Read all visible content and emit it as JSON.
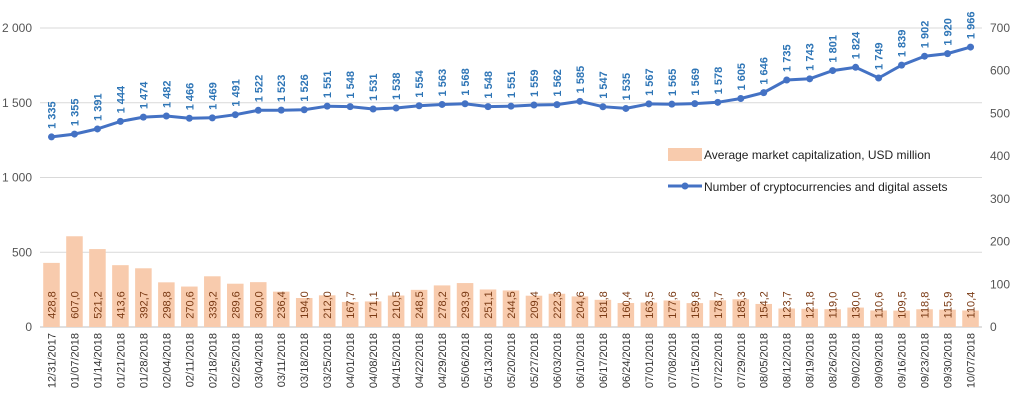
{
  "chart_data": {
    "type": "bar",
    "categories": [
      "12/31/2017",
      "01/07/2018",
      "01/14/2018",
      "01/21/2018",
      "01/28/2018",
      "02/04/2018",
      "02/11/2018",
      "02/18/2018",
      "02/25/2018",
      "03/04/2018",
      "03/11/2018",
      "03/18/2018",
      "03/25/2018",
      "04/01/2018",
      "04/08/2018",
      "04/15/2018",
      "04/22/2018",
      "04/29/2018",
      "05/06/2018",
      "05/13/2018",
      "05/20/2018",
      "05/27/2018",
      "06/03/2018",
      "06/10/2018",
      "06/17/2018",
      "06/24/2018",
      "07/01/2018",
      "07/08/2018",
      "07/15/2018",
      "07/22/2018",
      "07/29/2018",
      "08/05/2018",
      "08/12/2018",
      "08/19/2018",
      "08/26/2018",
      "09/02/2018",
      "09/09/2018",
      "09/16/2018",
      "09/23/2018",
      "09/30/2018",
      "10/07/2018"
    ],
    "series": [
      {
        "name": "Average market capitalization, USD million",
        "kind": "bar",
        "axis": "left",
        "color": "#f8cbad",
        "label_color": "#7a3a14",
        "values": [
          428.8,
          607.0,
          521.2,
          413.6,
          392.7,
          298.8,
          270.6,
          339.2,
          289.6,
          300.0,
          236.4,
          194.0,
          212.0,
          167.7,
          171.1,
          210.5,
          248.5,
          278.2,
          293.9,
          251.1,
          244.5,
          209.4,
          222.3,
          204.6,
          181.8,
          160.4,
          163.5,
          177.6,
          159.8,
          178.7,
          185.3,
          154.2,
          123.7,
          121.8,
          119.0,
          130.0,
          110.6,
          109.5,
          118.8,
          115.9,
          110.4
        ],
        "labels": [
          "428,8",
          "607,0",
          "521,2",
          "413,6",
          "392,7",
          "298,8",
          "270,6",
          "339,2",
          "289,6",
          "300,0",
          "236,4",
          "194,0",
          "212,0",
          "167,7",
          "171,1",
          "210,5",
          "248,5",
          "278,2",
          "293,9",
          "251,1",
          "244,5",
          "209,4",
          "222,3",
          "204,6",
          "181,8",
          "160,4",
          "163,5",
          "177,6",
          "159,8",
          "178,7",
          "185,3",
          "154,2",
          "123,7",
          "121,8",
          "119,0",
          "130,0",
          "110,6",
          "109,5",
          "118,8",
          "115,9",
          "110,4"
        ]
      },
      {
        "name": "Number of cryptocurrencies and digital assets",
        "kind": "line",
        "axis": "right",
        "color": "#4472c4",
        "label_color": "#2e75b6",
        "values": [
          1335,
          1355,
          1391,
          1444,
          1474,
          1482,
          1466,
          1469,
          1491,
          1522,
          1523,
          1526,
          1551,
          1548,
          1531,
          1538,
          1554,
          1563,
          1568,
          1548,
          1551,
          1559,
          1562,
          1585,
          1547,
          1535,
          1567,
          1565,
          1569,
          1578,
          1605,
          1646,
          1735,
          1743,
          1801,
          1824,
          1749,
          1839,
          1902,
          1920,
          1966
        ],
        "labels": [
          "1 335",
          "1 355",
          "1 391",
          "1 444",
          "1 474",
          "1 482",
          "1 466",
          "1 469",
          "1 491",
          "1 522",
          "1 523",
          "1 526",
          "1 551",
          "1 548",
          "1 531",
          "1 538",
          "1 554",
          "1 563",
          "1 568",
          "1 548",
          "1 551",
          "1 559",
          "1 562",
          "1 585",
          "1 547",
          "1 535",
          "1 567",
          "1 565",
          "1 569",
          "1 578",
          "1 605",
          "1 646",
          "1 735",
          "1 743",
          "1 801",
          "1 824",
          "1 749",
          "1 839",
          "1 902",
          "1 920",
          "1 966"
        ]
      }
    ],
    "left_axis": {
      "ylim": [
        0,
        2000
      ],
      "ticks": [
        0,
        500,
        1000,
        1500,
        2000
      ],
      "tick_labels": [
        "0",
        "500",
        "1 000",
        "1 500",
        "2 000"
      ]
    },
    "right_axis": {
      "ylim": [
        0,
        700
      ],
      "ticks": [
        0,
        100,
        200,
        300,
        400,
        500,
        600,
        700
      ],
      "tick_labels": [
        "0",
        "100",
        "200",
        "300",
        "400",
        "500",
        "600",
        "700"
      ]
    },
    "title": "",
    "xlabel": "",
    "ylabel": "",
    "grid": true,
    "legend_position": "right-middle"
  }
}
